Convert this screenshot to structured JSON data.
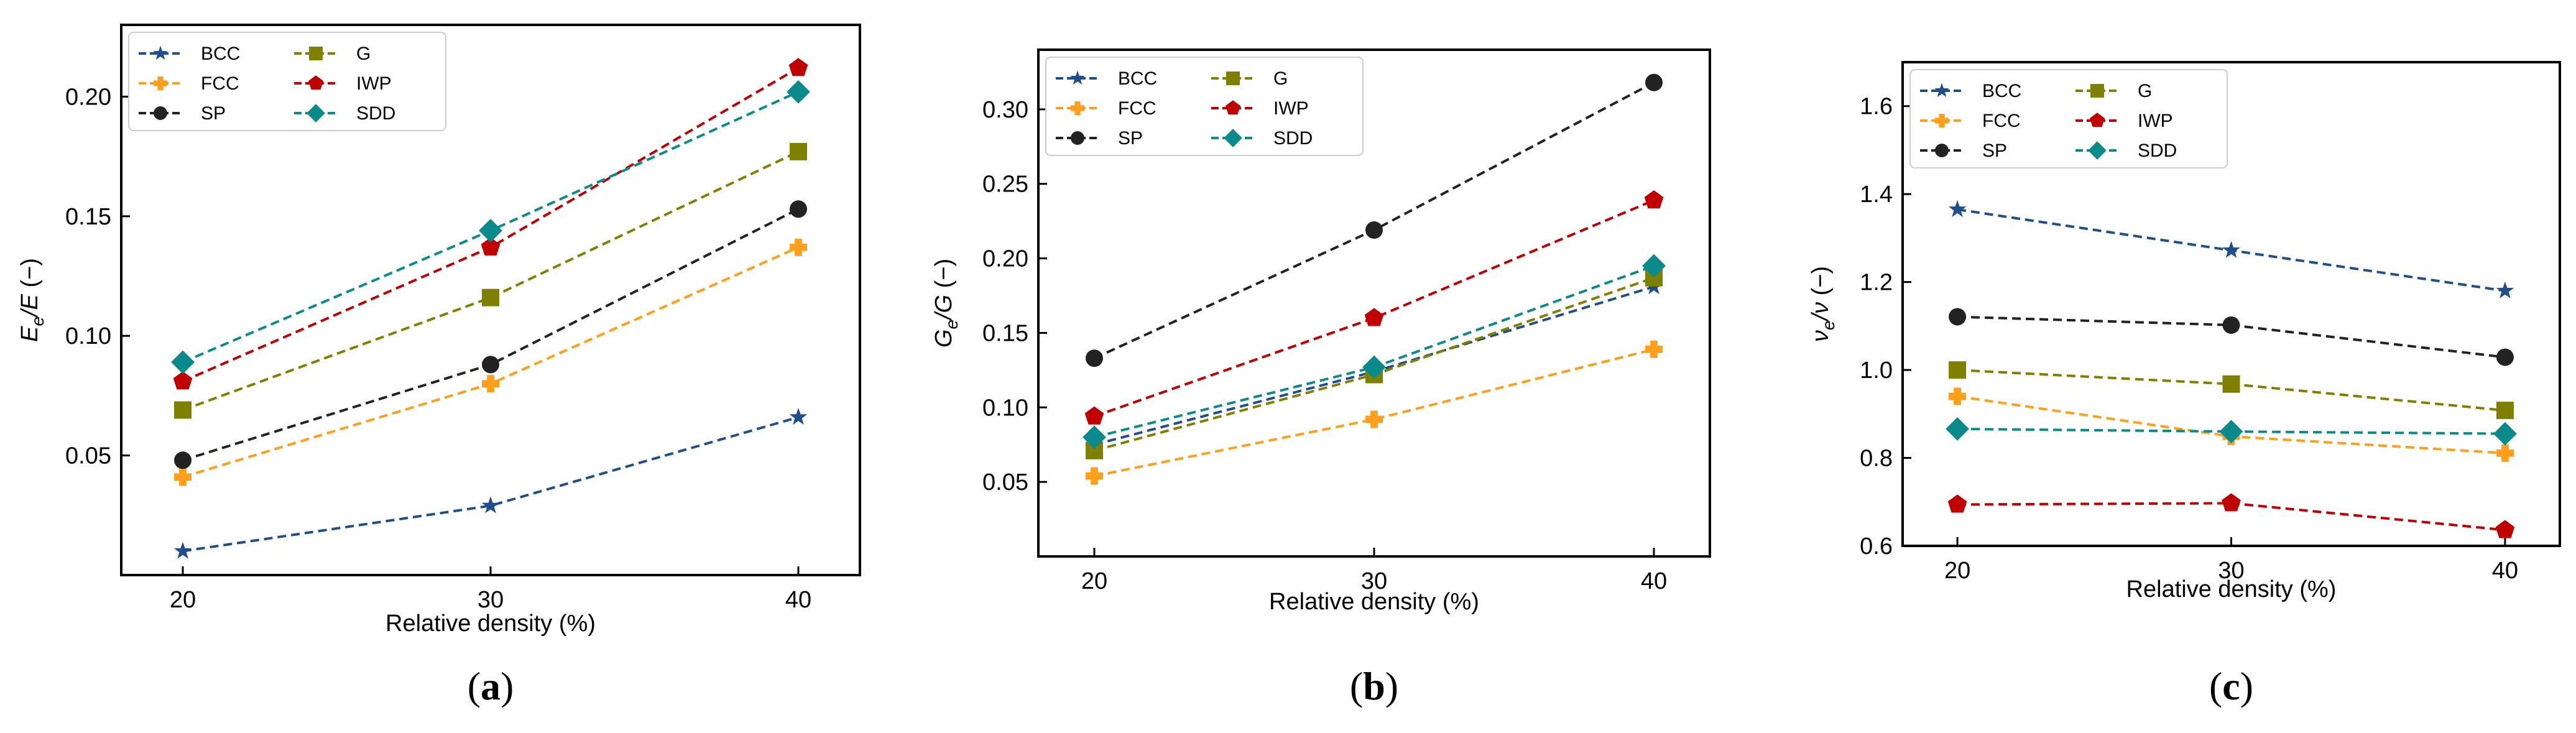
{
  "chart_data": [
    {
      "type": "line",
      "panel_label": "a",
      "xlabel": "Relative density (%)",
      "ylabel": {
        "main": "E",
        "sub1": "e",
        "rest": "/E (−)"
      },
      "categories": [
        20,
        30,
        40
      ],
      "xlim": [
        18,
        42
      ],
      "ylim": [
        0.0,
        0.23
      ],
      "yticks": [
        0.05,
        0.1,
        0.15,
        0.2
      ],
      "ytick_labels": [
        "0.05",
        "0.10",
        "0.15",
        "0.20"
      ],
      "legend_position": "top-left",
      "series": [
        {
          "name": "BCC",
          "values": [
            0.01,
            0.029,
            0.066
          ],
          "color": "#1f4e8c",
          "marker": "star"
        },
        {
          "name": "FCC",
          "values": [
            0.041,
            0.08,
            0.137
          ],
          "color": "#ff9f1c",
          "marker": "plus"
        },
        {
          "name": "SP",
          "values": [
            0.048,
            0.088,
            0.153
          ],
          "color": "#222222",
          "marker": "circle"
        },
        {
          "name": "G",
          "values": [
            0.069,
            0.116,
            0.177
          ],
          "color": "#7f7f00",
          "marker": "square"
        },
        {
          "name": "IWP",
          "values": [
            0.081,
            0.137,
            0.212
          ],
          "color": "#c00000",
          "marker": "pentagon"
        },
        {
          "name": "SDD",
          "values": [
            0.089,
            0.144,
            0.202
          ],
          "color": "#0a8a8a",
          "marker": "diamond"
        }
      ]
    },
    {
      "type": "line",
      "panel_label": "b",
      "xlabel": "Relative density (%)",
      "ylabel": {
        "main": "G",
        "sub1": "e",
        "rest": "/G (−)"
      },
      "categories": [
        20,
        30,
        40
      ],
      "xlim": [
        18,
        42
      ],
      "ylim": [
        0.0,
        0.34
      ],
      "yticks": [
        0.05,
        0.1,
        0.15,
        0.2,
        0.25,
        0.3
      ],
      "ytick_labels": [
        "0.05",
        "0.10",
        "0.15",
        "0.20",
        "0.25",
        "0.30"
      ],
      "legend_position": "top-left",
      "series": [
        {
          "name": "BCC",
          "values": [
            0.075,
            0.124,
            0.181
          ],
          "color": "#1f4e8c",
          "marker": "star"
        },
        {
          "name": "FCC",
          "values": [
            0.054,
            0.092,
            0.139
          ],
          "color": "#ff9f1c",
          "marker": "plus"
        },
        {
          "name": "SP",
          "values": [
            0.133,
            0.219,
            0.318
          ],
          "color": "#222222",
          "marker": "circle"
        },
        {
          "name": "G",
          "values": [
            0.071,
            0.122,
            0.187
          ],
          "color": "#7f7f00",
          "marker": "square"
        },
        {
          "name": "IWP",
          "values": [
            0.094,
            0.16,
            0.239
          ],
          "color": "#c00000",
          "marker": "pentagon"
        },
        {
          "name": "SDD",
          "values": [
            0.08,
            0.127,
            0.195
          ],
          "color": "#0a8a8a",
          "marker": "diamond"
        }
      ]
    },
    {
      "type": "line",
      "panel_label": "c",
      "xlabel": "Relative density (%)",
      "ylabel": {
        "main": "ν",
        "sub1": "e",
        "rest": "/ν (−)"
      },
      "categories": [
        20,
        30,
        40
      ],
      "xlim": [
        18,
        42
      ],
      "ylim": [
        0.6,
        1.7
      ],
      "yticks": [
        0.6,
        0.8,
        1.0,
        1.2,
        1.4,
        1.6
      ],
      "ytick_labels": [
        "0.6",
        "0.8",
        "1.0",
        "1.2",
        "1.4",
        "1.6"
      ],
      "legend_position": "top-left",
      "series": [
        {
          "name": "BCC",
          "values": [
            1.365,
            1.272,
            1.18
          ],
          "color": "#1f4e8c",
          "marker": "star"
        },
        {
          "name": "FCC",
          "values": [
            0.94,
            0.849,
            0.811
          ],
          "color": "#ff9f1c",
          "marker": "plus"
        },
        {
          "name": "SP",
          "values": [
            1.121,
            1.102,
            1.029
          ],
          "color": "#222222",
          "marker": "circle"
        },
        {
          "name": "G",
          "values": [
            1.0,
            0.968,
            0.908
          ],
          "color": "#7f7f00",
          "marker": "square"
        },
        {
          "name": "IWP",
          "values": [
            0.694,
            0.697,
            0.636
          ],
          "color": "#c00000",
          "marker": "pentagon"
        },
        {
          "name": "SDD",
          "values": [
            0.866,
            0.86,
            0.855
          ],
          "color": "#0a8a8a",
          "marker": "diamond"
        }
      ]
    }
  ]
}
